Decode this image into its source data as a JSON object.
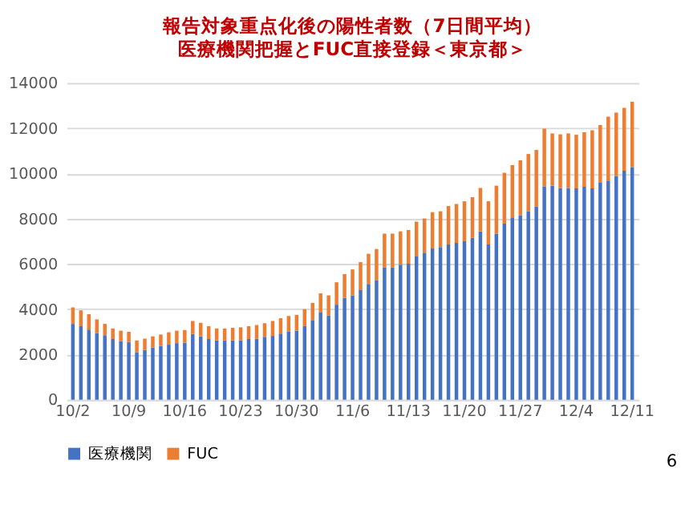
{
  "chart_data": {
    "type": "bar",
    "title": "報告対象重点化後の陽性者数（7日間平均）",
    "subtitle": "医療機関把握とFUC直接登録＜東京都＞",
    "categories": [
      "10/2",
      null,
      null,
      null,
      null,
      null,
      null,
      "10/9",
      null,
      null,
      null,
      null,
      null,
      null,
      "10/16",
      null,
      null,
      null,
      null,
      null,
      null,
      "10/23",
      null,
      null,
      null,
      null,
      null,
      null,
      "10/30",
      null,
      null,
      null,
      null,
      null,
      null,
      "11/6",
      null,
      null,
      null,
      null,
      null,
      null,
      "11/13",
      null,
      null,
      null,
      null,
      null,
      null,
      "11/20",
      null,
      null,
      null,
      null,
      null,
      null,
      "11/27",
      null,
      null,
      null,
      null,
      null,
      null,
      "12/4",
      null,
      null,
      null,
      null,
      null,
      null,
      "12/11"
    ],
    "stacked": true,
    "series": [
      {
        "name": "医療機関",
        "color": "#4472c4",
        "values": [
          3350,
          3250,
          3100,
          2950,
          2850,
          2680,
          2580,
          2550,
          2100,
          2200,
          2300,
          2380,
          2430,
          2500,
          2520,
          2900,
          2800,
          2680,
          2620,
          2620,
          2620,
          2630,
          2680,
          2700,
          2780,
          2820,
          2920,
          3020,
          3050,
          3250,
          3520,
          3850,
          3720,
          4200,
          4500,
          4610,
          4840,
          5120,
          5280,
          5850,
          5850,
          5970,
          6010,
          6330,
          6500,
          6680,
          6750,
          6860,
          6930,
          7000,
          7160,
          7440,
          6860,
          7340,
          7780,
          8060,
          8150,
          8330,
          8540,
          9430,
          9460,
          9360,
          9360,
          9340,
          9410,
          9340,
          9590,
          9660,
          9890,
          10120,
          10280
        ]
      },
      {
        "name": "FUC",
        "color": "#ed7d31",
        "values": [
          730,
          700,
          680,
          600,
          500,
          470,
          470,
          450,
          520,
          500,
          500,
          500,
          550,
          550,
          560,
          580,
          600,
          570,
          530,
          530,
          560,
          570,
          570,
          600,
          600,
          660,
          680,
          680,
          700,
          750,
          760,
          850,
          890,
          990,
          1050,
          1150,
          1240,
          1330,
          1380,
          1490,
          1490,
          1470,
          1490,
          1540,
          1510,
          1610,
          1580,
          1700,
          1720,
          1770,
          1790,
          1920,
          1910,
          2120,
          2250,
          2310,
          2430,
          2530,
          2500,
          2550,
          2310,
          2370,
          2410,
          2370,
          2410,
          2570,
          2550,
          2850,
          2800,
          2780,
          2890
        ]
      }
    ],
    "ylim": [
      0,
      14000
    ],
    "yticks": [
      0,
      2000,
      4000,
      6000,
      8000,
      10000,
      12000,
      14000
    ],
    "grid": "y",
    "legend": "bottom",
    "annotations": [
      "6"
    ]
  }
}
